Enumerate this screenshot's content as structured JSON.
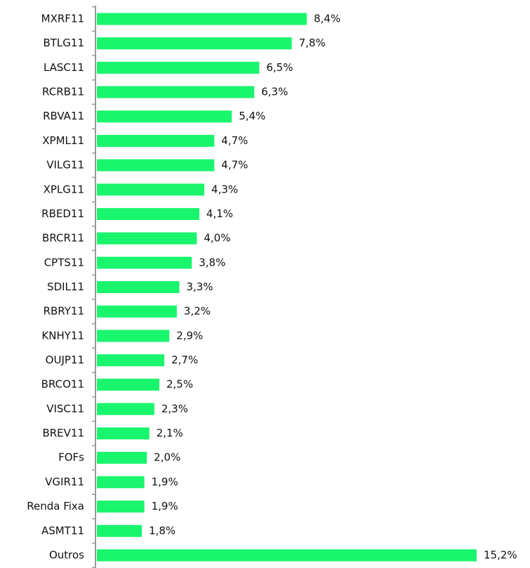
{
  "chart_data": {
    "type": "barh",
    "categories": [
      "MXRF11",
      "BTLG11",
      "LASC11",
      "RCRB11",
      "RBVA11",
      "XPML11",
      "VILG11",
      "XPLG11",
      "RBED11",
      "BRCR11",
      "CPTS11",
      "SDIL11",
      "RBRY11",
      "KNHY11",
      "OUJP11",
      "BRCO11",
      "VISC11",
      "BREV11",
      "FOFs",
      "VGIR11",
      "Renda Fixa",
      "ASMT11",
      "Outros"
    ],
    "values": [
      8.4,
      7.8,
      6.5,
      6.3,
      5.4,
      4.7,
      4.7,
      4.3,
      4.1,
      4.0,
      3.8,
      3.3,
      3.2,
      2.9,
      2.7,
      2.5,
      2.3,
      2.1,
      2.0,
      1.9,
      1.9,
      1.8,
      15.2
    ],
    "value_labels": [
      "8,4%",
      "7,8%",
      "6,5%",
      "6,3%",
      "5,4%",
      "4,7%",
      "4,7%",
      "4,3%",
      "4,1%",
      "4,0%",
      "3,8%",
      "3,3%",
      "3,2%",
      "2,9%",
      "2,7%",
      "2,5%",
      "2,3%",
      "2,1%",
      "2,0%",
      "1,9%",
      "1,9%",
      "1,8%",
      "15,2%"
    ],
    "color": "#19f56c"
  }
}
